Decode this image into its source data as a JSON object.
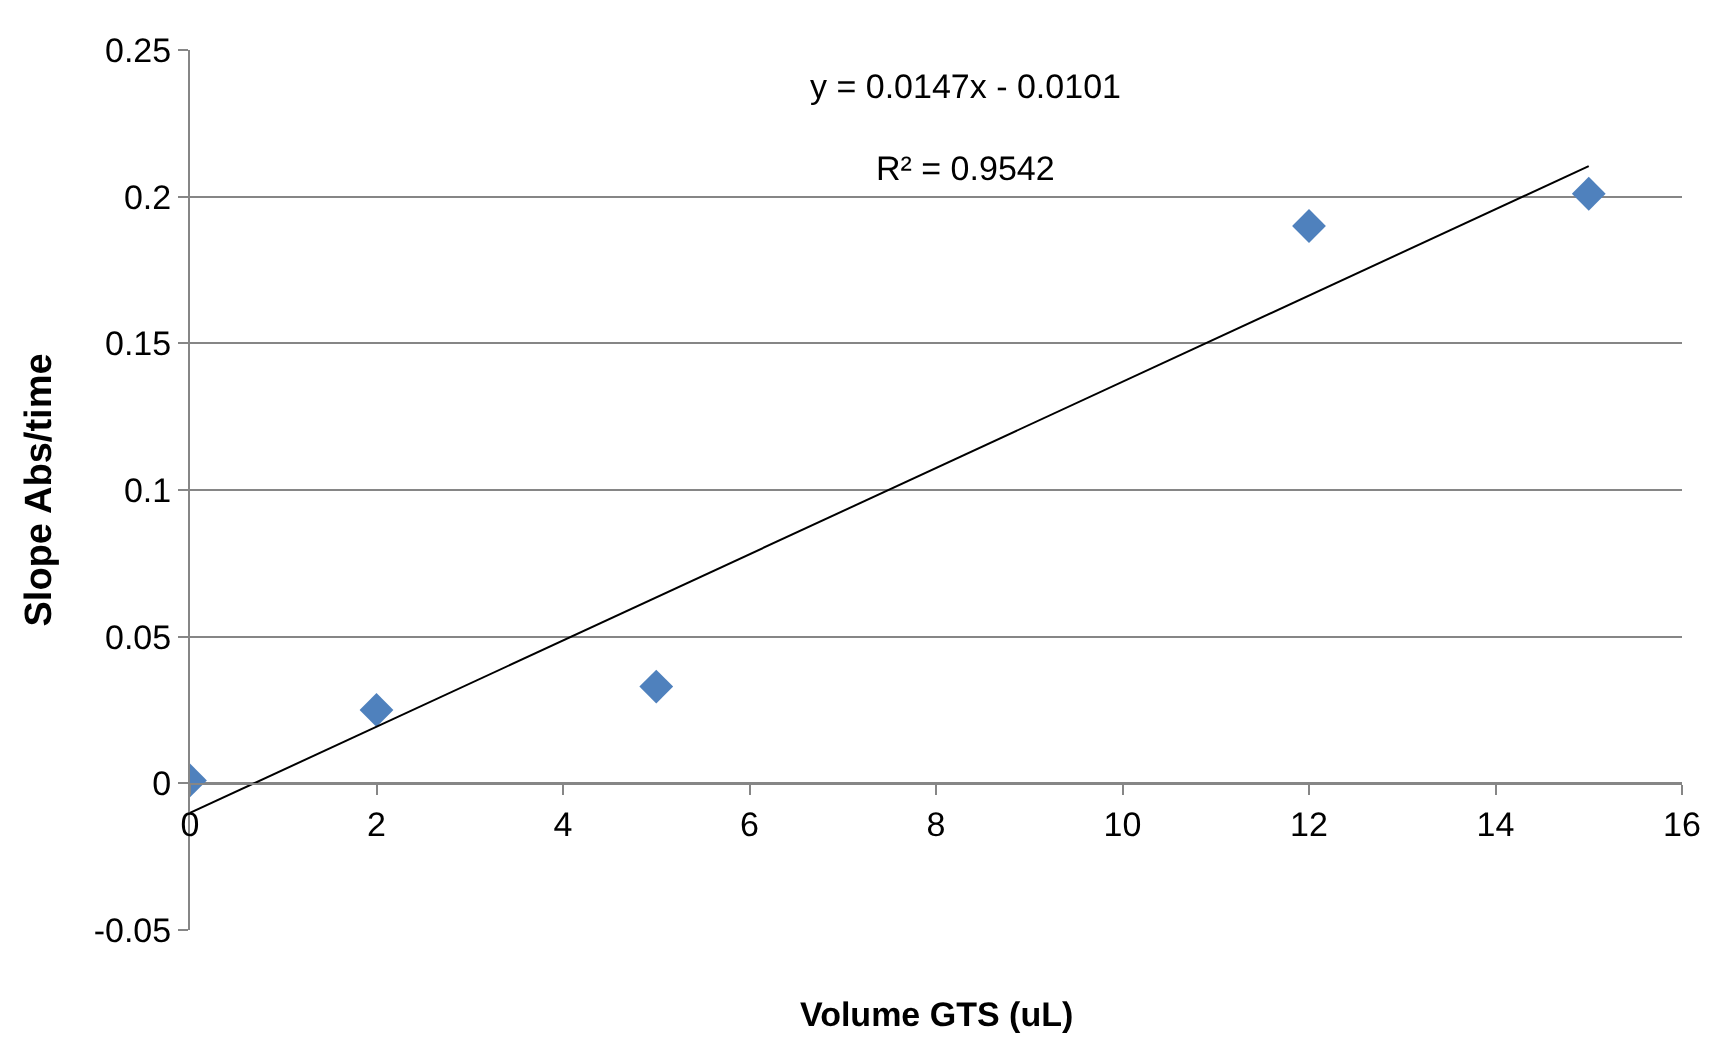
{
  "chart_data": {
    "type": "scatter",
    "xlabel": "Volume GTS (uL)",
    "ylabel": "Slope Abs/time",
    "x": [
      0,
      2,
      5,
      12,
      15
    ],
    "series": [
      {
        "color": "#4f81bd",
        "marker": "diamond",
        "values": [
          0.001,
          0.025,
          0.033,
          0.19,
          0.201
        ]
      },
      {
        "type": "line",
        "color": "#000000",
        "marker": "none",
        "x": [
          0,
          15
        ],
        "values": [
          -0.0101,
          0.2104
        ]
      }
    ],
    "annotations": [
      "y = 0.0147x - 0.0101",
      "R² = 0.9542"
    ],
    "xlim": [
      0,
      16
    ],
    "xticks": [
      0,
      2,
      4,
      6,
      8,
      10,
      12,
      14,
      16
    ],
    "ylim": [
      -0.05,
      0.25
    ],
    "yticks": [
      -0.05,
      0,
      0.05,
      0.1,
      0.15,
      0.2,
      0.25
    ],
    "grid": "y"
  }
}
